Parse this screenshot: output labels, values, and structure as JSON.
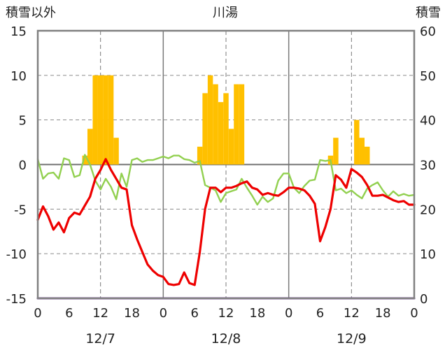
{
  "chart_data": {
    "type": "line",
    "title": "川湯",
    "ylabel_left": "積雪以外",
    "ylabel_right": "積雪",
    "ylim_left": [
      -15,
      15
    ],
    "ylim_right": [
      0,
      60
    ],
    "yticks_left": [
      "15",
      "10",
      "5",
      "0",
      "-5",
      "-10",
      "-15"
    ],
    "yticks_right": [
      "60",
      "50",
      "40",
      "30",
      "20",
      "10",
      "0"
    ],
    "xlim": [
      0,
      72
    ],
    "xticks": [
      "0",
      "6",
      "12",
      "18",
      "0",
      "6",
      "12",
      "18",
      "0",
      "6",
      "12",
      "18",
      "0"
    ],
    "dates": [
      "12/7",
      "12/8",
      "12/9"
    ],
    "grid": true,
    "colors": {
      "temperature": "#ee0000",
      "secondary": "#92d050",
      "bars": "#ffc000",
      "snow_depth": "#7030a0",
      "frame": "#808080"
    },
    "series": [
      {
        "type": "bar",
        "axis": "left",
        "x": [
          9,
          10,
          11,
          12,
          13,
          14,
          15,
          31,
          32,
          33,
          34,
          35,
          36,
          37,
          38,
          39,
          40,
          55,
          56,
          57,
          61,
          62,
          63
        ],
        "values": [
          1,
          4,
          10,
          10,
          10,
          10,
          3,
          2,
          8,
          10,
          9,
          7,
          8,
          4,
          9,
          9,
          0,
          0,
          1,
          3,
          5,
          3,
          2
        ]
      },
      {
        "type": "line",
        "axis": "left",
        "x": [
          0,
          1,
          2,
          3,
          4,
          5,
          6,
          7,
          8,
          9,
          10,
          11,
          12,
          13,
          14,
          15,
          16,
          17,
          18,
          19,
          20,
          21,
          22,
          23,
          24,
          25,
          26,
          27,
          28,
          29,
          30,
          31,
          32,
          33,
          34,
          35,
          36,
          37,
          38,
          39,
          40,
          41,
          42,
          43,
          44,
          45,
          46,
          47,
          48,
          49,
          50,
          51,
          52,
          53,
          54,
          55,
          56,
          57,
          58,
          59,
          60,
          61,
          62,
          63,
          64,
          65,
          66,
          67,
          68,
          69,
          70,
          71,
          72
        ],
        "values": [
          -6.2,
          -4.7,
          -5.8,
          -7.3,
          -6.5,
          -7.6,
          -6.0,
          -5.4,
          -5.6,
          -4.6,
          -3.6,
          -1.6,
          -0.6,
          0.6,
          -0.6,
          -1.6,
          -2.6,
          -2.8,
          -6.8,
          -8.4,
          -9.8,
          -11.2,
          -11.9,
          -12.4,
          -12.6,
          -13.4,
          -13.5,
          -13.4,
          -12.1,
          -13.3,
          -13.5,
          -9.8,
          -5.0,
          -2.6,
          -2.6,
          -3.1,
          -2.6,
          -2.6,
          -2.4,
          -2.1,
          -1.9,
          -2.6,
          -2.8,
          -3.4,
          -3.2,
          -3.4,
          -3.5,
          -3.1,
          -2.6,
          -2.6,
          -2.7,
          -2.9,
          -3.5,
          -4.4,
          -8.6,
          -7.0,
          -5.0,
          -1.2,
          -1.7,
          -2.6,
          -0.5,
          -0.9,
          -1.4,
          -2.3,
          -3.5,
          -3.5,
          -3.4,
          -3.7,
          -4.0,
          -4.2,
          -4.1,
          -4.5,
          -4.5
        ]
      },
      {
        "type": "line",
        "axis": "left",
        "x": [
          0,
          1,
          2,
          3,
          4,
          5,
          6,
          7,
          8,
          9,
          10,
          11,
          12,
          13,
          14,
          15,
          16,
          17,
          18,
          19,
          20,
          21,
          22,
          23,
          24,
          25,
          26,
          27,
          28,
          29,
          30,
          31,
          32,
          33,
          34,
          35,
          36,
          37,
          38,
          39,
          40,
          41,
          42,
          43,
          44,
          45,
          46,
          47,
          48,
          49,
          50,
          51,
          52,
          53,
          54,
          55,
          56,
          57,
          58,
          59,
          60,
          61,
          62,
          63,
          64,
          65,
          66,
          67,
          68,
          69,
          70,
          71,
          72
        ],
        "values": [
          0.6,
          -1.6,
          -1.0,
          -0.9,
          -1.6,
          0.7,
          0.5,
          -1.4,
          -1.2,
          1.1,
          0.0,
          -1.8,
          -2.8,
          -1.6,
          -2.5,
          -3.9,
          -1.0,
          -2.5,
          0.5,
          0.7,
          0.3,
          0.5,
          0.5,
          0.7,
          0.9,
          0.7,
          1.0,
          1.0,
          0.6,
          0.5,
          0.2,
          0.4,
          -2.3,
          -2.6,
          -2.9,
          -4.2,
          -3.2,
          -3.0,
          -2.8,
          -1.6,
          -2.6,
          -3.5,
          -4.5,
          -3.6,
          -4.2,
          -3.8,
          -1.8,
          -1.0,
          -1.0,
          -2.6,
          -3.2,
          -2.4,
          -1.8,
          -1.7,
          0.5,
          0.4,
          0.5,
          -2.9,
          -2.7,
          -3.2,
          -2.9,
          -3.4,
          -3.8,
          -2.7,
          -2.3,
          -2.0,
          -2.9,
          -3.6,
          -3.0,
          -3.5,
          -3.3,
          -3.5,
          -3.4
        ]
      },
      {
        "type": "line",
        "axis": "right",
        "x": [
          0,
          72
        ],
        "values": [
          0,
          0
        ]
      }
    ]
  }
}
